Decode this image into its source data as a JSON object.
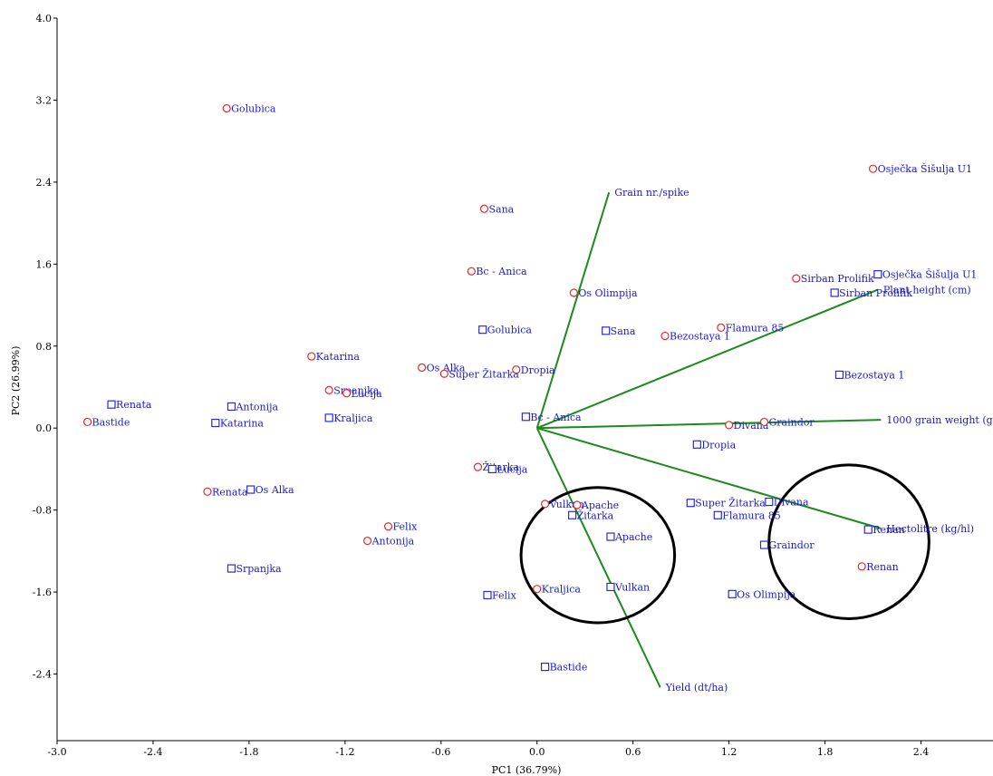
{
  "chart_data": {
    "type": "scatter",
    "title": "",
    "xlabel": "PC1 (36.79%)",
    "ylabel": "PC2 (26.99%)",
    "xlim": [
      -3.0,
      2.85
    ],
    "ylim": [
      -3.05,
      4.0
    ],
    "x_ticks": [
      -3.0,
      -2.4,
      -1.8,
      -1.2,
      -0.6,
      0.0,
      0.6,
      1.2,
      1.8,
      2.4
    ],
    "x_tick_labels": [
      "-3.0",
      "-2.4",
      "-1.8",
      "-1.2",
      "-0.6",
      "0.0",
      "0.6",
      "1.2",
      "1.8",
      "2.4"
    ],
    "y_ticks": [
      -2.4,
      -1.6,
      -0.8,
      0.0,
      0.8,
      1.6,
      2.4,
      3.2,
      4.0
    ],
    "y_tick_labels": [
      "-2.4",
      "-1.6",
      "-0.8",
      "0.0",
      "0.8",
      "1.6",
      "2.4",
      "3.2",
      "4.0"
    ],
    "grid": false,
    "colors": {
      "circle_marker": "#e8272a",
      "square_marker": "#2b2bd6",
      "vector": "#1e8a1e",
      "label": "#1a1ad0",
      "ellipse": "#000000"
    },
    "series": [
      {
        "marker": "circle",
        "points": [
          {
            "label": "Golubica",
            "x": -1.94,
            "y": 3.12
          },
          {
            "label": "Osječka Šišulja U1",
            "x": 2.1,
            "y": 2.53
          },
          {
            "label": "Sana",
            "x": -0.33,
            "y": 2.14
          },
          {
            "label": "Bc - Anica",
            "x": -0.41,
            "y": 1.53
          },
          {
            "label": "Os Olimpija",
            "x": 0.23,
            "y": 1.32
          },
          {
            "label": "Sirban Prolifik",
            "x": 1.62,
            "y": 1.46
          },
          {
            "label": "Flamura 85",
            "x": 1.15,
            "y": 0.98
          },
          {
            "label": "Bezostaya 1",
            "x": 0.8,
            "y": 0.9
          },
          {
            "label": "Katarina",
            "x": -1.41,
            "y": 0.7
          },
          {
            "label": "Os Alka",
            "x": -0.72,
            "y": 0.59
          },
          {
            "label": "Super Žitarka",
            "x": -0.58,
            "y": 0.53
          },
          {
            "label": "Dropia",
            "x": -0.13,
            "y": 0.57
          },
          {
            "label": "Srpanjka",
            "x": -1.3,
            "y": 0.37
          },
          {
            "label": "Lucija",
            "x": -1.19,
            "y": 0.34
          },
          {
            "label": "Bastide",
            "x": -2.81,
            "y": 0.06
          },
          {
            "label": "Divana",
            "x": 1.2,
            "y": 0.03
          },
          {
            "label": "Graindor",
            "x": 1.42,
            "y": 0.06
          },
          {
            "label": "Žitarka",
            "x": -0.37,
            "y": -0.38
          },
          {
            "label": "Renata",
            "x": -2.06,
            "y": -0.62
          },
          {
            "label": "Vulkan",
            "x": 0.05,
            "y": -0.74
          },
          {
            "label": "Apache",
            "x": 0.25,
            "y": -0.75
          },
          {
            "label": "Felix",
            "x": -0.93,
            "y": -0.96
          },
          {
            "label": "Antonija",
            "x": -1.06,
            "y": -1.1
          },
          {
            "label": "Kraljica",
            "x": 0.0,
            "y": -1.57
          },
          {
            "label": "Renan",
            "x": 2.03,
            "y": -1.35
          }
        ]
      },
      {
        "marker": "square",
        "points": [
          {
            "label": "Osječka Šišulja U1",
            "x": 2.13,
            "y": 1.5
          },
          {
            "label": "Sirban Prolifik",
            "x": 1.86,
            "y": 1.32
          },
          {
            "label": "Golubica",
            "x": -0.34,
            "y": 0.96
          },
          {
            "label": "Sana",
            "x": 0.43,
            "y": 0.95
          },
          {
            "label": "Bezostaya 1",
            "x": 1.89,
            "y": 0.52
          },
          {
            "label": "Renata",
            "x": -2.66,
            "y": 0.23
          },
          {
            "label": "Antonija",
            "x": -1.91,
            "y": 0.21
          },
          {
            "label": "Katarina",
            "x": -2.01,
            "y": 0.05
          },
          {
            "label": "Kraljica",
            "x": -1.3,
            "y": 0.1
          },
          {
            "label": "Bc - Anica",
            "x": -0.07,
            "y": 0.11
          },
          {
            "label": "Dropia",
            "x": 1.0,
            "y": -0.16
          },
          {
            "label": "Lucija",
            "x": -0.28,
            "y": -0.4
          },
          {
            "label": "Os Alka",
            "x": -1.79,
            "y": -0.6
          },
          {
            "label": "Super Žitarka",
            "x": 0.96,
            "y": -0.73
          },
          {
            "label": "Divana",
            "x": 1.45,
            "y": -0.72
          },
          {
            "label": "Flamura 85",
            "x": 1.13,
            "y": -0.85
          },
          {
            "label": "Žitarka",
            "x": 0.22,
            "y": -0.85
          },
          {
            "label": "Apache",
            "x": 0.46,
            "y": -1.06
          },
          {
            "label": "Renan",
            "x": 2.07,
            "y": -0.99
          },
          {
            "label": "Graindor",
            "x": 1.42,
            "y": -1.14
          },
          {
            "label": "Srpanjka",
            "x": -1.91,
            "y": -1.37
          },
          {
            "label": "Vulkan",
            "x": 0.46,
            "y": -1.55
          },
          {
            "label": "Felix",
            "x": -0.31,
            "y": -1.63
          },
          {
            "label": "Os Olimpija",
            "x": 1.22,
            "y": -1.62
          },
          {
            "label": "Bastide",
            "x": 0.05,
            "y": -2.33
          }
        ]
      }
    ],
    "vectors": [
      {
        "label": "Grain nr./spike",
        "x": 0.45,
        "y": 2.3
      },
      {
        "label": "Plant height (cm)",
        "x": 2.13,
        "y": 1.35
      },
      {
        "label": "1000 grain weight (g)",
        "x": 2.15,
        "y": 0.08
      },
      {
        "label": "Hectolitre (kg/hl)",
        "x": 2.15,
        "y": -0.98
      },
      {
        "label": "Yield (dt/ha)",
        "x": 0.77,
        "y": -2.53
      }
    ],
    "ellipses": [
      {
        "cx": 0.38,
        "cy": -1.24,
        "rx": 0.48,
        "ry": 0.66
      },
      {
        "cx": 1.95,
        "cy": -1.11,
        "rx": 0.5,
        "ry": 0.75
      }
    ]
  }
}
